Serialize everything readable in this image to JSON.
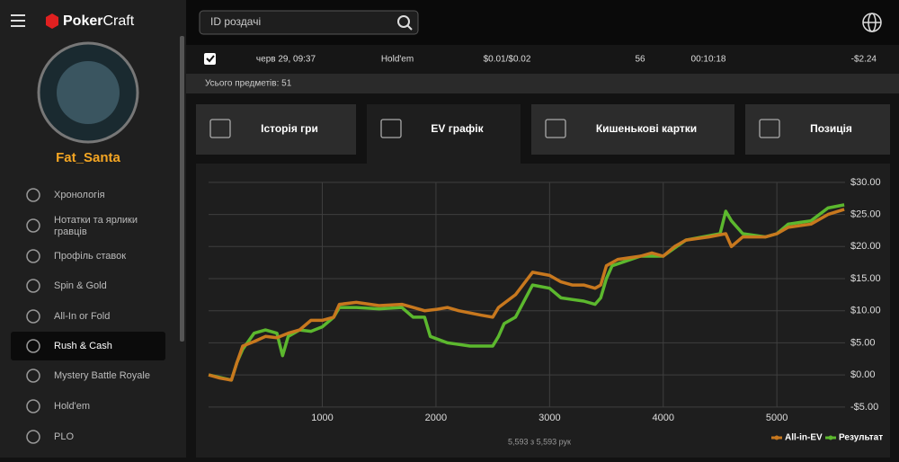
{
  "header": {
    "logo_a": "Poker",
    "logo_b": "Craft",
    "search_placeholder": "ID роздачі"
  },
  "sidebar": {
    "user": "Fat_Santa",
    "active": 5,
    "items": [
      "Хронологія",
      "Нотатки та ярлики гравців",
      "Профіль ставок",
      "Spin & Gold",
      "All-In or Fold",
      "Rush & Cash",
      "Mystery Battle Royale",
      "Hold'em",
      "PLO"
    ]
  },
  "table": {
    "rows": [
      [
        "черв 29, 09:37",
        "Hold'em",
        "$0.01/$0.02",
        "56",
        "00:10:18",
        "-$2.24"
      ]
    ],
    "total": "Усього предметів: 51"
  },
  "tabs": {
    "active": 1,
    "items": [
      "Історія гри",
      "EV графік",
      "Кишенькові картки",
      "Позиція"
    ]
  },
  "chart_data": {
    "type": "line",
    "footer": "5,593 з 5,593 рук",
    "xlim": [
      -80,
      5600
    ],
    "ylim": [
      -6.7,
      31.8
    ],
    "xticks": [
      1000,
      2000,
      3000,
      4000,
      5000
    ],
    "yticks": [
      {
        "value": 30,
        "label": "$30.00"
      },
      {
        "value": 25,
        "label": "$25.00"
      },
      {
        "value": 20,
        "label": "$20.00"
      },
      {
        "value": 15,
        "label": "$15.00"
      },
      {
        "value": 10,
        "label": "$10.00"
      },
      {
        "value": 5,
        "label": "$5.00"
      },
      {
        "value": 0,
        "label": "$0.00"
      },
      {
        "value": -5,
        "label": "-$5.00"
      }
    ],
    "grid": true,
    "series": [
      {
        "name": "All-in-EV",
        "color": "#c8781e",
        "x": [
          0,
          100,
          200,
          250,
          300,
          400,
          500,
          600,
          700,
          800,
          900,
          1000,
          1100,
          1150,
          1300,
          1500,
          1700,
          1800,
          1900,
          2000,
          2100,
          2200,
          2400,
          2500,
          2550,
          2700,
          2850,
          3000,
          3100,
          3200,
          3300,
          3400,
          3450,
          3500,
          3600,
          3800,
          3900,
          4000,
          4100,
          4200,
          4400,
          4550,
          4600,
          4700,
          4900,
          5000,
          5100,
          5300,
          5450,
          5593
        ],
        "values": [
          0,
          -0.5,
          -0.8,
          2,
          4.5,
          5.2,
          6,
          5.8,
          6.5,
          7,
          8.5,
          8.5,
          9,
          11,
          11.3,
          10.8,
          11,
          10.5,
          10,
          10.2,
          10.5,
          10,
          9.3,
          9,
          10.5,
          12.5,
          16,
          15.5,
          14.5,
          14,
          14,
          13.5,
          14,
          17,
          18,
          18.5,
          19,
          18.5,
          20,
          21,
          21.5,
          22,
          20,
          21.5,
          21.5,
          22,
          23,
          23.5,
          25,
          25.8
        ]
      },
      {
        "name": "Результат",
        "color": "#5cb82e",
        "x": [
          0,
          200,
          250,
          300,
          400,
          500,
          600,
          650,
          700,
          800,
          900,
          1000,
          1100,
          1150,
          1300,
          1500,
          1700,
          1800,
          1900,
          1950,
          2100,
          2300,
          2500,
          2550,
          2600,
          2700,
          2850,
          3000,
          3100,
          3300,
          3400,
          3450,
          3500,
          3550,
          3800,
          4000,
          4200,
          4500,
          4550,
          4600,
          4700,
          4900,
          5000,
          5100,
          5300,
          5450,
          5593
        ],
        "values": [
          0,
          -0.8,
          2,
          4,
          6.5,
          7,
          6.5,
          3,
          6,
          7,
          6.8,
          7.5,
          9,
          10.5,
          10.5,
          10.3,
          10.5,
          9,
          9,
          6,
          5,
          4.5,
          4.5,
          6,
          8,
          9,
          14,
          13.5,
          12,
          11.5,
          11,
          12,
          15,
          17,
          18.5,
          18.5,
          21,
          22,
          25.5,
          24,
          22,
          21.5,
          22,
          23.5,
          24,
          26,
          26.5
        ]
      }
    ]
  }
}
